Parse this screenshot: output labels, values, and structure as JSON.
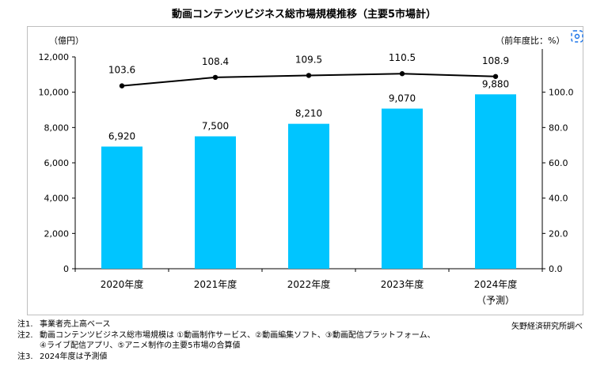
{
  "title": "動画コンテンツビジネス総市場規模推移（主要5市場計）",
  "colors": {
    "bar": "#00c5ff",
    "line": "#000000",
    "accent": "#1a73e8"
  },
  "chart_data": {
    "type": "bar",
    "categories": [
      "2020年度",
      "2021年度",
      "2022年度",
      "2023年度",
      "2024年度"
    ],
    "category_sublabels": [
      "",
      "",
      "",
      "",
      "（予測）"
    ],
    "series": [
      {
        "type": "bar",
        "axis": "left",
        "values": [
          6920,
          7500,
          8210,
          9070,
          9880
        ],
        "labels": [
          "6,920",
          "7,500",
          "8,210",
          "9,070",
          "9,880"
        ]
      },
      {
        "type": "line",
        "axis": "right",
        "values": [
          103.6,
          108.4,
          109.5,
          110.5,
          108.9
        ],
        "labels": [
          "103.6",
          "108.4",
          "109.5",
          "110.5",
          "108.9"
        ]
      }
    ],
    "y_left": {
      "unit_label": "（億円）",
      "ylim": [
        0,
        12000
      ],
      "ticks": [
        0,
        2000,
        4000,
        6000,
        8000,
        10000,
        12000
      ],
      "tick_labels": [
        "0",
        "2,000",
        "4,000",
        "6,000",
        "8,000",
        "10,000",
        "12,000"
      ]
    },
    "y_right": {
      "unit_label": "（前年度比：%）",
      "ylim": [
        0,
        120
      ],
      "ticks": [
        0,
        20,
        40,
        60,
        80,
        100
      ],
      "tick_labels": [
        "0.0",
        "20.0",
        "40.0",
        "60.0",
        "80.0",
        "100.0"
      ]
    },
    "grid": false,
    "legend": "none"
  },
  "notes": [
    {
      "label": "注1.",
      "lines": [
        "事業者売上高ベース"
      ]
    },
    {
      "label": "注2.",
      "lines": [
        "動画コンテンツビジネス総市場規模は ①動画制作サービス、②動画編集ソフト、③動画配信プラットフォーム、",
        "④ライブ配信アプリ、⑤アニメ制作の主要5市場の合算値"
      ]
    },
    {
      "label": "注3.",
      "lines": [
        "2024年度は予測値"
      ]
    }
  ],
  "source": "矢野経済研究所調べ"
}
